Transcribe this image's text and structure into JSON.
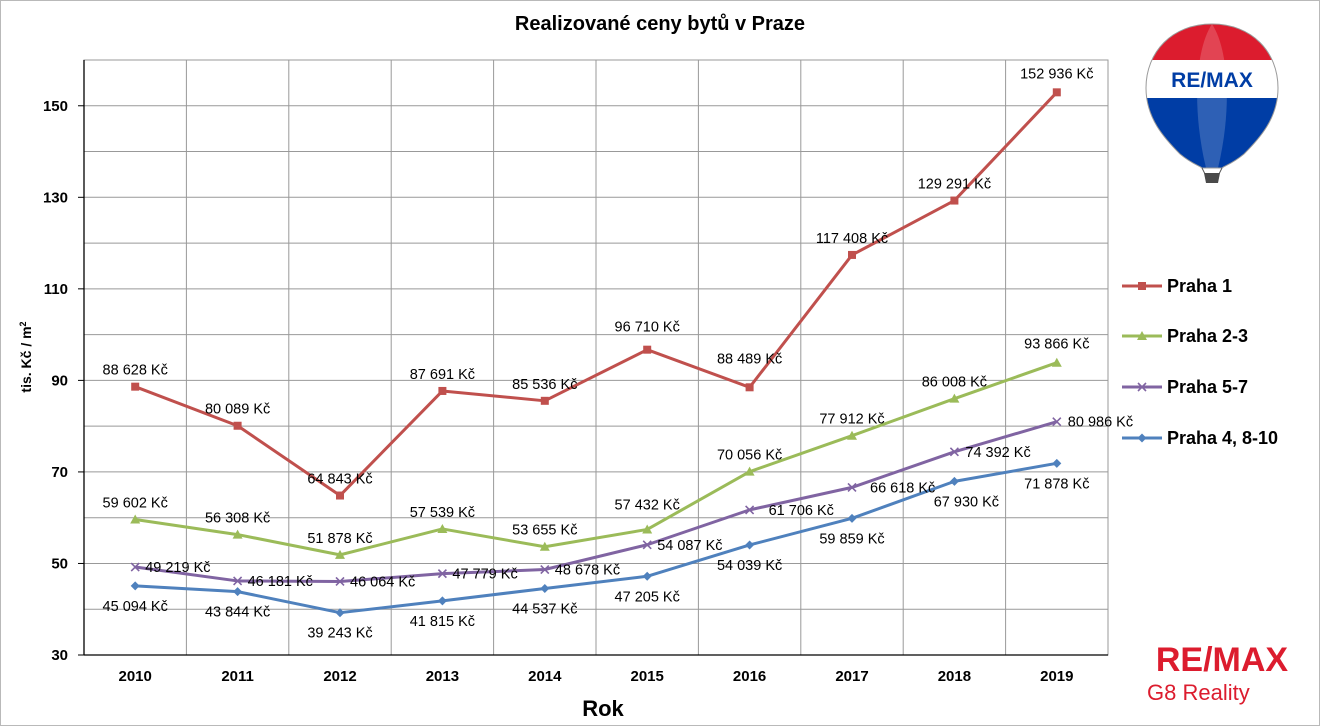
{
  "chart_data": {
    "type": "line",
    "title": "Realizované ceny bytů v Praze",
    "xlabel": "Rok",
    "ylabel": "tis. Kč / m",
    "ylabel_sup": "2",
    "ylim": [
      30,
      160
    ],
    "yticks": [
      30,
      50,
      70,
      90,
      110,
      130,
      150
    ],
    "grid": true,
    "legend_position": "right",
    "categories": [
      "2010",
      "2011",
      "2012",
      "2013",
      "2014",
      "2015",
      "2016",
      "2017",
      "2018",
      "2019"
    ],
    "series": [
      {
        "name": "Praha 1",
        "color": "#c0504d",
        "marker": "square",
        "values": [
          88.628,
          80.089,
          64.843,
          87.691,
          85.536,
          96.71,
          88.489,
          117.408,
          129.291,
          152.936
        ],
        "labels": [
          "88 628 Kč",
          "80 089 Kč",
          "64 843 Kč",
          "87 691 Kč",
          "85 536 Kč",
          "96 710 Kč",
          "88 489 Kč",
          "117 408 Kč",
          "129 291 Kč",
          "152 936 Kč"
        ]
      },
      {
        "name": "Praha 2-3",
        "color": "#9bbb59",
        "marker": "triangle",
        "values": [
          59.602,
          56.308,
          51.878,
          57.539,
          53.655,
          57.432,
          70.056,
          77.912,
          86.008,
          93.866
        ],
        "labels": [
          "59 602 Kč",
          "56 308 Kč",
          "51 878 Kč",
          "57 539 Kč",
          "53 655 Kč",
          "57 432 Kč",
          "70 056 Kč",
          "77 912 Kč",
          "86 008 Kč",
          "93 866 Kč"
        ]
      },
      {
        "name": "Praha 5-7",
        "color": "#8064a2",
        "marker": "x",
        "values": [
          49.219,
          46.181,
          46.064,
          47.779,
          48.678,
          54.087,
          61.706,
          66.618,
          74.392,
          80.986
        ],
        "labels": [
          "49 219 Kč",
          "46 181 Kč",
          "46 064 Kč",
          "47 779 Kč",
          "48 678 Kč",
          "54 087 Kč",
          "61 706 Kč",
          "66 618 Kč",
          "74 392 Kč",
          "80 986 Kč"
        ]
      },
      {
        "name": "Praha 4, 8-10",
        "color": "#4f81bd",
        "marker": "diamond",
        "values": [
          45.094,
          43.844,
          39.243,
          41.815,
          44.537,
          47.205,
          54.039,
          59.859,
          67.93,
          71.878
        ],
        "labels": [
          "45 094 Kč",
          "43 844 Kč",
          "39 243 Kč",
          "41 815 Kč",
          "44 537 Kč",
          "47 205 Kč",
          "54 039 Kč",
          "59 859 Kč",
          "67 930 Kč",
          "71 878 Kč"
        ]
      }
    ]
  },
  "logo_balloon": {
    "icon": "hot-air-balloon-icon",
    "text": "RE/MAX"
  },
  "logo_brand": {
    "name": "RE/MAX",
    "subtitle": "G8 Reality",
    "color": "#dc1c2e"
  }
}
